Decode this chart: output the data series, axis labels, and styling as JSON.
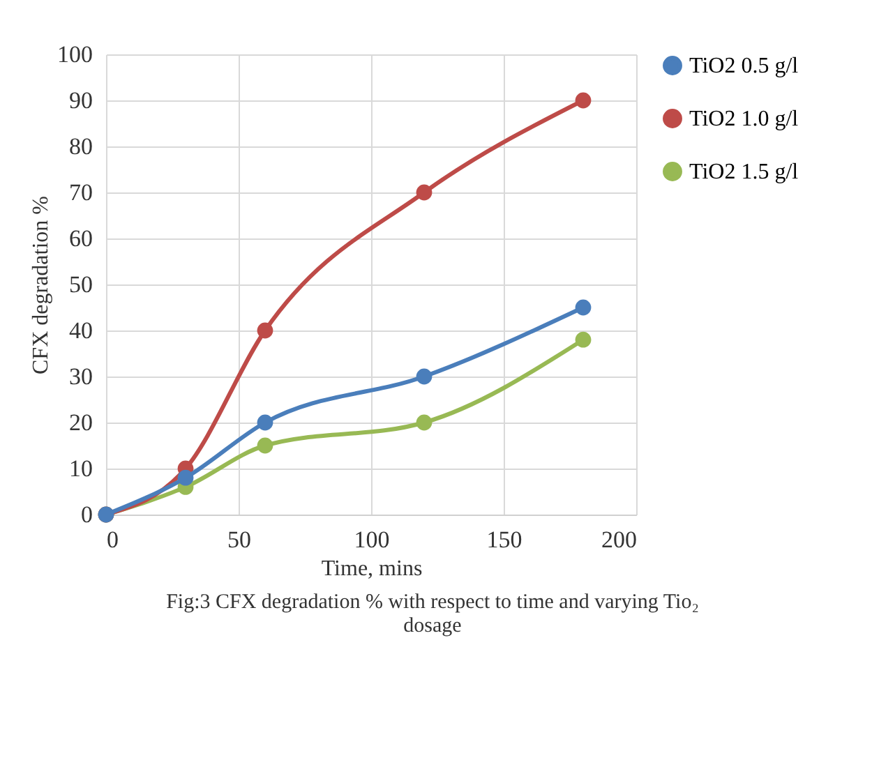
{
  "chart_data": {
    "type": "line",
    "xlabel": "Time, mins",
    "ylabel": "CFX degradation %",
    "x": [
      0,
      30,
      60,
      120,
      180
    ],
    "series": [
      {
        "name": "TiO2 0.5 g/l",
        "color": "#4a7ebb",
        "values": [
          0,
          8,
          20,
          30,
          45
        ]
      },
      {
        "name": "TiO2 1.0 g/l",
        "color": "#be4b48",
        "values": [
          0,
          10,
          40,
          70,
          90
        ]
      },
      {
        "name": "TiO2 1.5 g/l",
        "color": "#98b954",
        "values": [
          0,
          6,
          15,
          20,
          38
        ]
      }
    ],
    "xlim": [
      0,
      200
    ],
    "xticks": [
      0,
      50,
      100,
      150,
      200
    ],
    "ylim": [
      0,
      100
    ],
    "yticks": [
      0,
      10,
      20,
      30,
      40,
      50,
      60,
      70,
      80,
      90,
      100
    ],
    "grid": true,
    "legend": "right",
    "marker": "circle",
    "line_style": "solid",
    "annotations": [
      "Fig:3 CFX degradation % with respect to time and varying Tio₂ dosage"
    ]
  }
}
